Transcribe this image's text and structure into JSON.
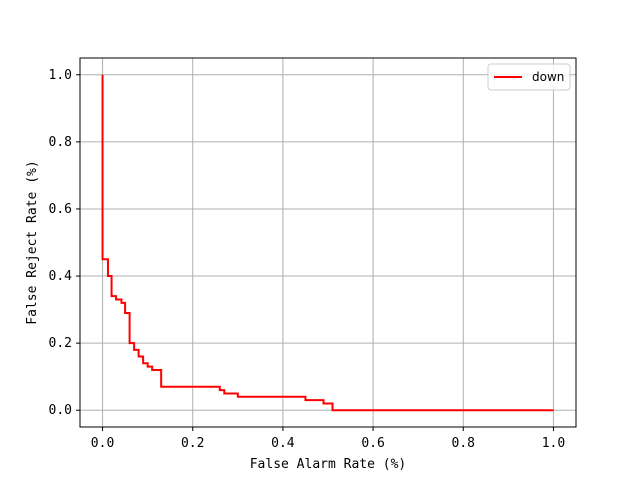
{
  "chart_data": {
    "type": "line",
    "xlabel": "False Alarm Rate (%)",
    "ylabel": "False Reject Rate (%)",
    "xlim": [
      -0.05,
      1.05
    ],
    "ylim": [
      -0.05,
      1.05
    ],
    "xticks": [
      "0.0",
      "0.2",
      "0.4",
      "0.6",
      "0.8",
      "1.0"
    ],
    "yticks": [
      "0.0",
      "0.2",
      "0.4",
      "0.6",
      "0.8",
      "1.0"
    ],
    "grid": true,
    "legend_position": "upper right",
    "series": [
      {
        "name": "down",
        "color": "#ff0000",
        "step": true,
        "x": [
          0.0,
          0.0,
          0.0,
          0.002,
          0.002,
          0.012,
          0.012,
          0.02,
          0.02,
          0.03,
          0.03,
          0.042,
          0.042,
          0.05,
          0.05,
          0.06,
          0.06,
          0.07,
          0.07,
          0.08,
          0.08,
          0.09,
          0.09,
          0.1,
          0.1,
          0.11,
          0.11,
          0.13,
          0.13,
          0.26,
          0.26,
          0.27,
          0.27,
          0.3,
          0.3,
          0.45,
          0.45,
          0.49,
          0.49,
          0.51,
          0.51,
          1.0
        ],
        "y": [
          1.0,
          0.95,
          0.45,
          0.45,
          0.45,
          0.45,
          0.4,
          0.4,
          0.34,
          0.34,
          0.33,
          0.33,
          0.32,
          0.32,
          0.29,
          0.29,
          0.2,
          0.2,
          0.18,
          0.18,
          0.16,
          0.16,
          0.14,
          0.14,
          0.13,
          0.13,
          0.12,
          0.12,
          0.07,
          0.07,
          0.06,
          0.06,
          0.05,
          0.05,
          0.04,
          0.04,
          0.03,
          0.03,
          0.02,
          0.02,
          0.0,
          0.0
        ]
      }
    ]
  }
}
